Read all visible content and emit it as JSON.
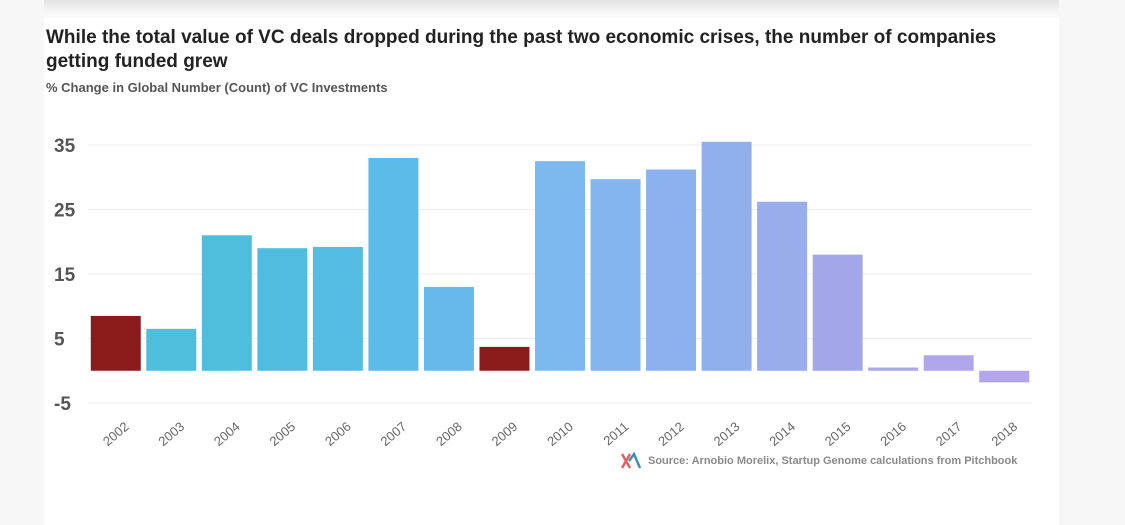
{
  "header": {
    "title": "While the total value of VC deals dropped during the past two economic crises, the number of companies getting funded grew",
    "subtitle": "% Change in Global Number (Count) of VC Investments"
  },
  "footer": {
    "source": "Source: Arnobio Morelix, Startup Genome calculations from Pitchbook"
  },
  "chart_data": {
    "type": "bar",
    "title": "While the total value of VC deals dropped during the past two economic crises, the number of companies getting funded grew",
    "subtitle": "% Change in Global Number (Count) of VC Investments",
    "xlabel": "",
    "ylabel": "",
    "ylim": [
      -5,
      35
    ],
    "yticks": [
      35,
      25,
      15,
      5,
      -5
    ],
    "grid": true,
    "categories": [
      "2002",
      "2003",
      "2004",
      "2005",
      "2006",
      "2007",
      "2008",
      "2009",
      "2010",
      "2011",
      "2012",
      "2013",
      "2014",
      "2015",
      "2016",
      "2017",
      "2018"
    ],
    "values": [
      8.5,
      6.5,
      21,
      19,
      19.2,
      33,
      13,
      3.7,
      32.5,
      29.7,
      31.2,
      35.5,
      26.2,
      18,
      0.5,
      2.4,
      -1.8
    ],
    "colors": [
      "#8b1a1a",
      "#4fbddc",
      "#4fbddc",
      "#50bde0",
      "#55bce3",
      "#5cbbe8",
      "#67b9ea",
      "#8b1a1a",
      "#7cb9ee",
      "#84b5ee",
      "#8bb2ee",
      "#92afed",
      "#99acec",
      "#a3a7ea",
      "#aaa8ec",
      "#b0a6ec",
      "#b4a4ec"
    ],
    "legend": "none"
  }
}
